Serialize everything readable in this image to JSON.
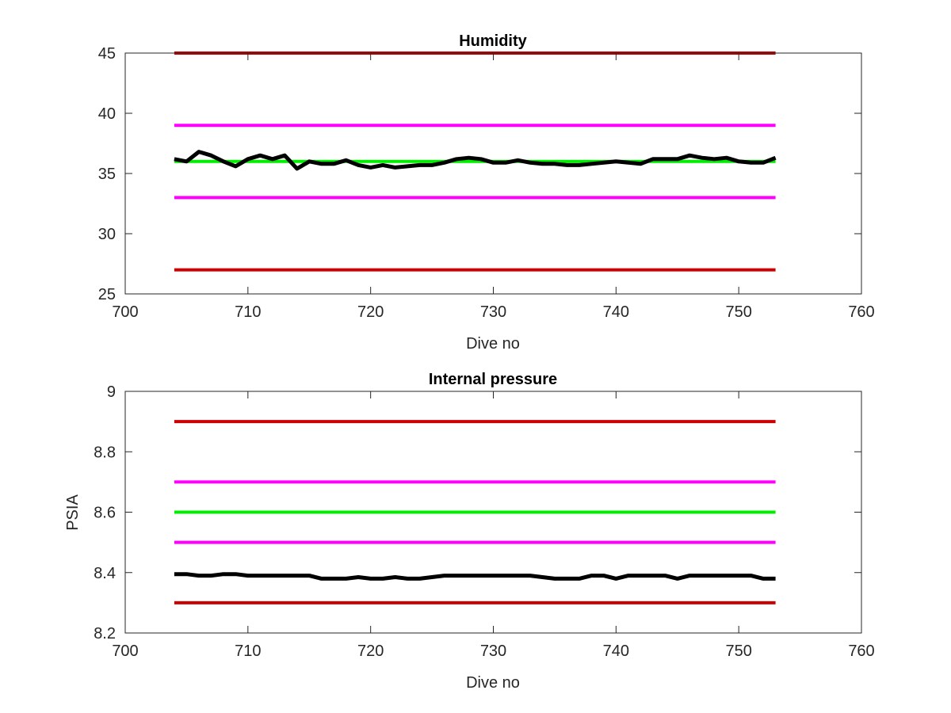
{
  "chart_data": [
    {
      "type": "line",
      "title": "Humidity",
      "xlabel": "Dive no",
      "ylabel": "",
      "xlim": [
        700,
        760
      ],
      "ylim": [
        25,
        45
      ],
      "xticks": [
        700,
        710,
        720,
        730,
        740,
        750,
        760
      ],
      "yticks": [
        25,
        30,
        35,
        40,
        45
      ],
      "grid": false,
      "series": [
        {
          "color": "#cc0000",
          "x": [
            704,
            753
          ],
          "values": [
            45,
            45
          ]
        },
        {
          "color": "#ff00ff",
          "x": [
            704,
            753
          ],
          "values": [
            39,
            39
          ]
        },
        {
          "color": "#00ee00",
          "x": [
            704,
            753
          ],
          "values": [
            36,
            36
          ]
        },
        {
          "color": "#ff00ff",
          "x": [
            704,
            753
          ],
          "values": [
            33,
            33
          ]
        },
        {
          "color": "#cc0000",
          "x": [
            704,
            753
          ],
          "values": [
            27,
            27
          ]
        },
        {
          "color": "#000000",
          "x": [
            704,
            705,
            706,
            707,
            708,
            709,
            710,
            711,
            712,
            713,
            714,
            715,
            716,
            717,
            718,
            719,
            720,
            721,
            722,
            723,
            724,
            725,
            726,
            727,
            728,
            729,
            730,
            731,
            732,
            733,
            734,
            735,
            736,
            737,
            738,
            739,
            740,
            741,
            742,
            743,
            744,
            745,
            746,
            747,
            748,
            749,
            750,
            751,
            752,
            753
          ],
          "values": [
            36.2,
            36.0,
            36.8,
            36.5,
            36.0,
            35.6,
            36.2,
            36.5,
            36.2,
            36.5,
            35.4,
            36.0,
            35.8,
            35.8,
            36.1,
            35.7,
            35.5,
            35.7,
            35.5,
            35.6,
            35.7,
            35.7,
            35.9,
            36.2,
            36.3,
            36.2,
            35.9,
            35.9,
            36.1,
            35.9,
            35.8,
            35.8,
            35.7,
            35.7,
            35.8,
            35.9,
            36.0,
            35.9,
            35.8,
            36.2,
            36.2,
            36.2,
            36.5,
            36.3,
            36.2,
            36.3,
            36.0,
            35.9,
            35.9,
            36.3
          ]
        }
      ]
    },
    {
      "type": "line",
      "title": "Internal pressure",
      "xlabel": "Dive no",
      "ylabel": "PSIA",
      "xlim": [
        700,
        760
      ],
      "ylim": [
        8.2,
        9.0
      ],
      "xticks": [
        700,
        710,
        720,
        730,
        740,
        750,
        760
      ],
      "yticks": [
        8.2,
        8.4,
        8.6,
        8.8,
        9.0
      ],
      "yticklabels": [
        "8.2",
        "8.4",
        "8.6",
        "8.8",
        "9"
      ],
      "grid": false,
      "series": [
        {
          "color": "#cc0000",
          "x": [
            704,
            753
          ],
          "values": [
            8.9,
            8.9
          ]
        },
        {
          "color": "#ff00ff",
          "x": [
            704,
            753
          ],
          "values": [
            8.7,
            8.7
          ]
        },
        {
          "color": "#00ee00",
          "x": [
            704,
            753
          ],
          "values": [
            8.6,
            8.6
          ]
        },
        {
          "color": "#ff00ff",
          "x": [
            704,
            753
          ],
          "values": [
            8.5,
            8.5
          ]
        },
        {
          "color": "#cc0000",
          "x": [
            704,
            753
          ],
          "values": [
            8.3,
            8.3
          ]
        },
        {
          "color": "#000000",
          "x": [
            704,
            705,
            706,
            707,
            708,
            709,
            710,
            711,
            712,
            713,
            714,
            715,
            716,
            717,
            718,
            719,
            720,
            721,
            722,
            723,
            724,
            725,
            726,
            727,
            728,
            729,
            730,
            731,
            732,
            733,
            734,
            735,
            736,
            737,
            738,
            739,
            740,
            741,
            742,
            743,
            744,
            745,
            746,
            747,
            748,
            749,
            750,
            751,
            752,
            753
          ],
          "values": [
            8.395,
            8.395,
            8.39,
            8.39,
            8.395,
            8.395,
            8.39,
            8.39,
            8.39,
            8.39,
            8.39,
            8.39,
            8.38,
            8.38,
            8.38,
            8.385,
            8.38,
            8.38,
            8.385,
            8.38,
            8.38,
            8.385,
            8.39,
            8.39,
            8.39,
            8.39,
            8.39,
            8.39,
            8.39,
            8.39,
            8.385,
            8.38,
            8.38,
            8.38,
            8.39,
            8.39,
            8.38,
            8.39,
            8.39,
            8.39,
            8.39,
            8.38,
            8.39,
            8.39,
            8.39,
            8.39,
            8.39,
            8.39,
            8.38,
            8.38
          ]
        }
      ]
    }
  ]
}
